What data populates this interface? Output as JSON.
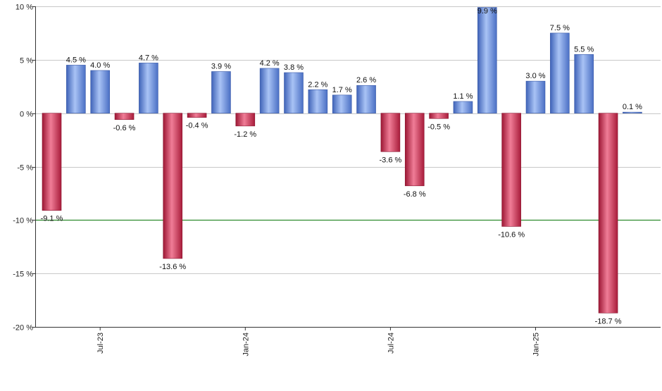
{
  "chart_data": {
    "type": "bar",
    "title": "",
    "xlabel": "",
    "ylabel": "",
    "ylim": [
      -20,
      10
    ],
    "y_ticks": [
      10,
      5,
      0,
      -5,
      -10,
      -15,
      -20
    ],
    "y_tick_suffix": " %",
    "value_suffix": " %",
    "grid": true,
    "reference_line": {
      "value": -10,
      "color": "#2e8b2e"
    },
    "x_tick_labels": [
      {
        "label": "Jul-23",
        "index": 2
      },
      {
        "label": "Jan-24",
        "index": 8
      },
      {
        "label": "Jul-24",
        "index": 14
      },
      {
        "label": "Jan-25",
        "index": 20
      }
    ],
    "values": [
      -9.1,
      4.5,
      4.0,
      -0.6,
      4.7,
      -13.6,
      -0.4,
      3.9,
      -1.2,
      4.2,
      3.8,
      2.2,
      1.7,
      2.6,
      -3.6,
      -6.8,
      -0.5,
      1.1,
      9.9,
      -10.6,
      3.0,
      7.5,
      5.5,
      -18.7,
      0.1
    ],
    "colors": {
      "positive": "#7b9fe0",
      "negative": "#c8304e"
    }
  }
}
